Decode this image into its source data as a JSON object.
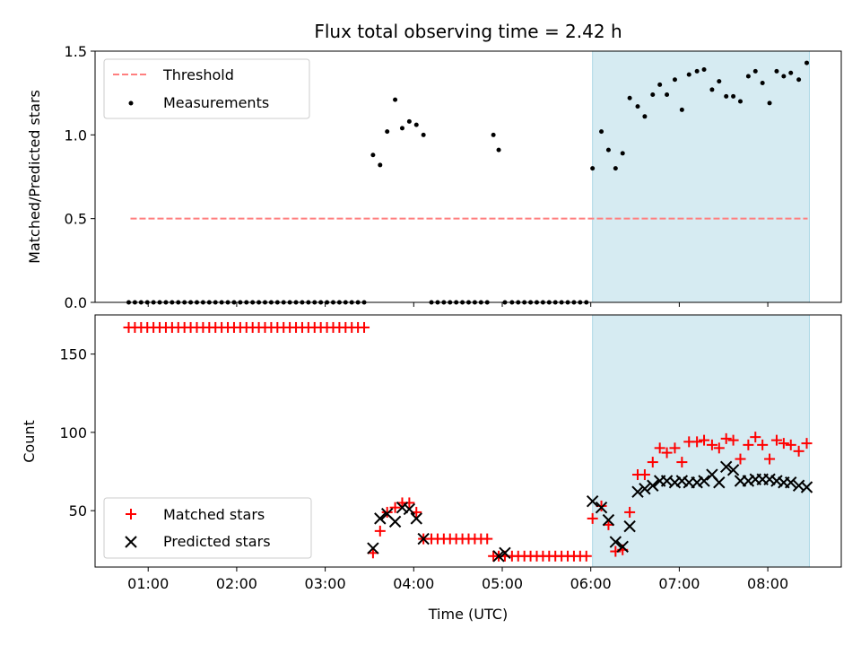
{
  "chart_data": [
    {
      "type": "scatter",
      "title": "Flux total observing time = 2.42 h",
      "xlabel": "",
      "ylabel": "Matched/Predicted stars",
      "x_unit": "hours UTC",
      "xlim": [
        0.4,
        8.83
      ],
      "ylim": [
        0,
        1.5
      ],
      "yticks": [
        0,
        0.5,
        1.0,
        1.5
      ],
      "ytick_labels": [
        "0.0",
        "0.5",
        "1.0",
        "1.5"
      ],
      "highlight_span": [
        6.02,
        8.47
      ],
      "highlight_color": "#add8e6",
      "legend_position": "upper left",
      "series": [
        {
          "name": "Threshold",
          "style": "dashed-line",
          "color": "#ff7f7f",
          "x": [
            0.8,
            8.45
          ],
          "y": [
            0.5,
            0.5
          ]
        },
        {
          "name": "Measurements",
          "style": "dot",
          "color": "#000000",
          "x": [
            0.78,
            0.85,
            0.92,
            0.99,
            1.06,
            1.13,
            1.2,
            1.27,
            1.34,
            1.41,
            1.48,
            1.55,
            1.62,
            1.69,
            1.76,
            1.83,
            1.9,
            1.97,
            2.04,
            2.11,
            2.18,
            2.25,
            2.32,
            2.39,
            2.46,
            2.53,
            2.6,
            2.67,
            2.74,
            2.81,
            2.88,
            2.95,
            3.02,
            3.09,
            3.16,
            3.23,
            3.3,
            3.37,
            3.44,
            3.54,
            3.62,
            3.7,
            3.79,
            3.87,
            3.95,
            4.03,
            4.11,
            4.2,
            4.27,
            4.34,
            4.41,
            4.48,
            4.55,
            4.62,
            4.69,
            4.76,
            4.83,
            4.9,
            4.96,
            5.03,
            5.11,
            5.18,
            5.25,
            5.32,
            5.39,
            5.46,
            5.53,
            5.6,
            5.67,
            5.74,
            5.81,
            5.88,
            5.95,
            6.02,
            6.12,
            6.2,
            6.28,
            6.36,
            6.44,
            6.53,
            6.61,
            6.7,
            6.78,
            6.86,
            6.95,
            7.03,
            7.11,
            7.2,
            7.28,
            7.37,
            7.45,
            7.53,
            7.61,
            7.69,
            7.78,
            7.86,
            7.94,
            8.02,
            8.1,
            8.18,
            8.26,
            8.35,
            8.44
          ],
          "y": [
            0,
            0,
            0,
            0,
            0,
            0,
            0,
            0,
            0,
            0,
            0,
            0,
            0,
            0,
            0,
            0,
            0,
            0,
            0,
            0,
            0,
            0,
            0,
            0,
            0,
            0,
            0,
            0,
            0,
            0,
            0,
            0,
            0,
            0,
            0,
            0,
            0,
            0,
            0,
            0.88,
            0.82,
            1.02,
            1.21,
            1.04,
            1.08,
            1.06,
            1.0,
            0,
            0,
            0,
            0,
            0,
            0,
            0,
            0,
            0,
            0,
            1.0,
            0.91,
            0,
            0,
            0,
            0,
            0,
            0,
            0,
            0,
            0,
            0,
            0,
            0,
            0,
            0,
            0.8,
            1.02,
            0.91,
            0.8,
            0.89,
            1.22,
            1.17,
            1.11,
            1.24,
            1.3,
            1.24,
            1.33,
            1.15,
            1.36,
            1.38,
            1.39,
            1.27,
            1.32,
            1.23,
            1.23,
            1.2,
            1.35,
            1.38,
            1.31,
            1.19,
            1.38,
            1.35,
            1.37,
            1.33,
            1.43
          ]
        }
      ]
    },
    {
      "type": "scatter",
      "title": "",
      "xlabel": "Time (UTC)",
      "ylabel": "Count",
      "x_unit": "hours UTC",
      "xlim": [
        0.4,
        8.83
      ],
      "ylim": [
        14,
        175
      ],
      "yticks": [
        50,
        100,
        150
      ],
      "ytick_labels": [
        "50",
        "100",
        "150"
      ],
      "xticks": [
        1,
        2,
        3,
        4,
        5,
        6,
        7,
        8
      ],
      "xtick_labels": [
        "01:00",
        "02:00",
        "03:00",
        "04:00",
        "05:00",
        "06:00",
        "07:00",
        "08:00"
      ],
      "highlight_span": [
        6.02,
        8.47
      ],
      "highlight_color": "#add8e6",
      "legend_position": "lower left",
      "series": [
        {
          "name": "Matched stars",
          "style": "plus",
          "color": "#ff0000",
          "x": [
            0.78,
            0.85,
            0.92,
            0.99,
            1.06,
            1.13,
            1.2,
            1.27,
            1.34,
            1.41,
            1.48,
            1.55,
            1.62,
            1.69,
            1.76,
            1.83,
            1.9,
            1.97,
            2.04,
            2.11,
            2.18,
            2.25,
            2.32,
            2.39,
            2.46,
            2.53,
            2.6,
            2.67,
            2.74,
            2.81,
            2.88,
            2.95,
            3.02,
            3.09,
            3.16,
            3.23,
            3.3,
            3.37,
            3.44,
            3.54,
            3.62,
            3.7,
            3.79,
            3.87,
            3.95,
            4.03,
            4.11,
            4.2,
            4.27,
            4.34,
            4.41,
            4.48,
            4.55,
            4.62,
            4.69,
            4.76,
            4.83,
            4.9,
            4.96,
            5.03,
            5.11,
            5.18,
            5.25,
            5.32,
            5.39,
            5.46,
            5.53,
            5.6,
            5.67,
            5.74,
            5.81,
            5.88,
            5.95,
            6.02,
            6.12,
            6.2,
            6.28,
            6.36,
            6.44,
            6.53,
            6.61,
            6.7,
            6.78,
            6.86,
            6.95,
            7.03,
            7.11,
            7.2,
            7.28,
            7.37,
            7.45,
            7.53,
            7.61,
            7.69,
            7.78,
            7.86,
            7.94,
            8.02,
            8.1,
            8.18,
            8.26,
            8.35,
            8.44
          ],
          "y": [
            167,
            167,
            167,
            167,
            167,
            167,
            167,
            167,
            167,
            167,
            167,
            167,
            167,
            167,
            167,
            167,
            167,
            167,
            167,
            167,
            167,
            167,
            167,
            167,
            167,
            167,
            167,
            167,
            167,
            167,
            167,
            167,
            167,
            167,
            167,
            167,
            167,
            167,
            167,
            23,
            37,
            49,
            52,
            55,
            55,
            49,
            32,
            32,
            32,
            32,
            32,
            32,
            32,
            32,
            32,
            32,
            32,
            21,
            21,
            21,
            21,
            21,
            21,
            21,
            21,
            21,
            21,
            21,
            21,
            21,
            21,
            21,
            21,
            45,
            53,
            41,
            24,
            25,
            49,
            73,
            73,
            81,
            90,
            87,
            90,
            81,
            94,
            94,
            95,
            92,
            90,
            96,
            95,
            83,
            92,
            97,
            92,
            83,
            95,
            93,
            92,
            88,
            93
          ]
        },
        {
          "name": "Predicted stars",
          "style": "x",
          "color": "#000000",
          "x": [
            3.54,
            3.62,
            3.7,
            3.79,
            3.87,
            3.95,
            4.03,
            4.11,
            4.96,
            5.03,
            6.02,
            6.12,
            6.2,
            6.28,
            6.36,
            6.44,
            6.53,
            6.61,
            6.7,
            6.78,
            6.86,
            6.95,
            7.03,
            7.11,
            7.2,
            7.28,
            7.37,
            7.45,
            7.53,
            7.61,
            7.69,
            7.78,
            7.86,
            7.94,
            8.02,
            8.1,
            8.18,
            8.26,
            8.35,
            8.44
          ],
          "y": [
            26,
            45,
            48,
            43,
            52,
            51,
            45,
            32,
            21,
            23,
            56,
            52,
            44,
            30,
            27,
            40,
            62,
            64,
            66,
            69,
            69,
            68,
            69,
            68,
            68,
            69,
            73,
            68,
            78,
            76,
            69,
            69,
            70,
            70,
            70,
            69,
            68,
            68,
            66,
            65
          ]
        }
      ]
    }
  ]
}
